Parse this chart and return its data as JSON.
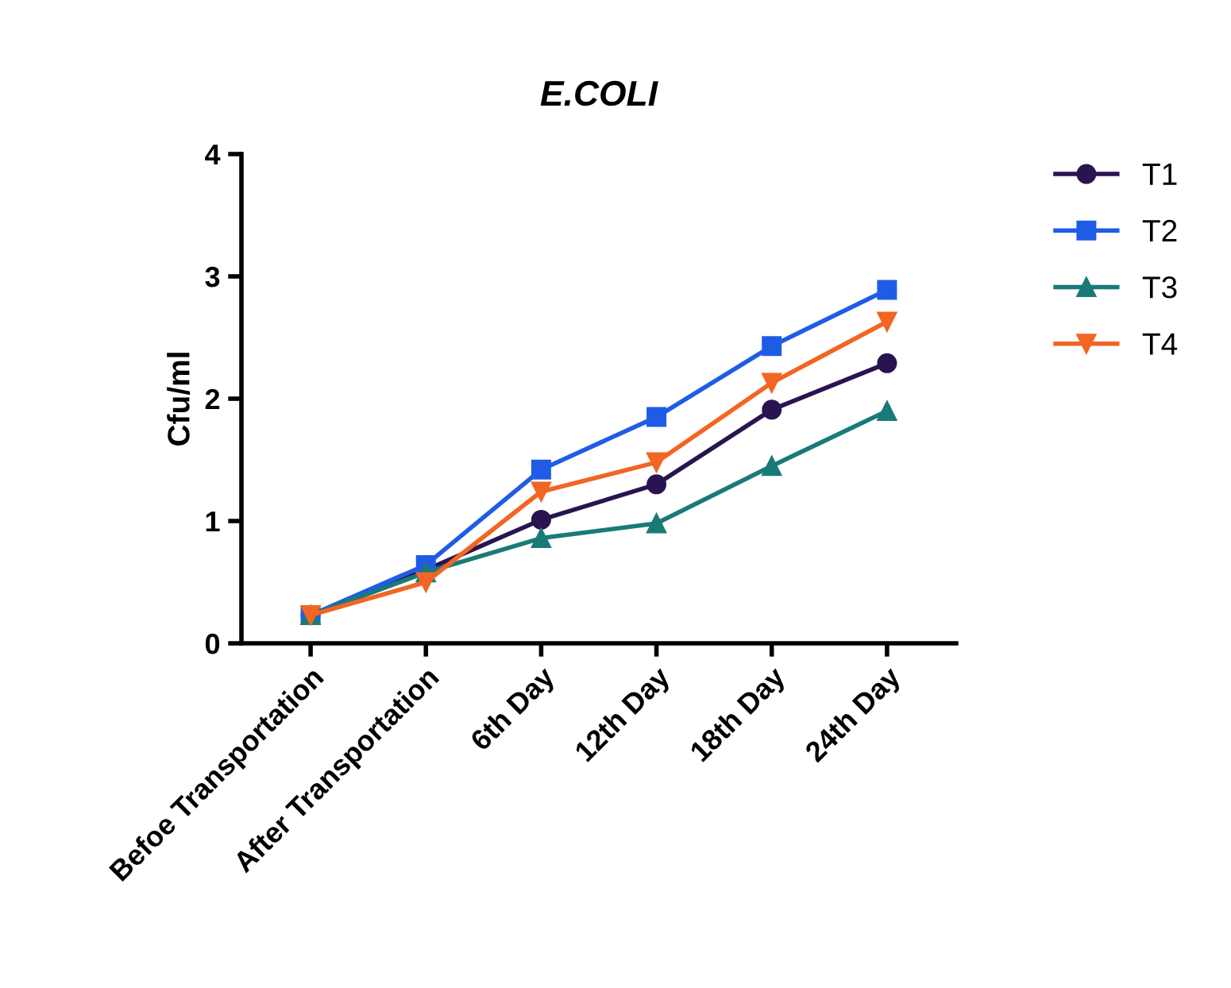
{
  "chart_data": {
    "type": "line",
    "title": "E.COLI",
    "ylabel": "Cfu/ml",
    "categories": [
      "Befoe Transportation",
      "After Transportation",
      "6th Day",
      "12th Day",
      "18th Day",
      "24th Day"
    ],
    "series": [
      {
        "name": "T1",
        "color": "#2a1450",
        "marker": "circle",
        "values": [
          0.23,
          0.6,
          1.01,
          1.3,
          1.91,
          2.29
        ]
      },
      {
        "name": "T2",
        "color": "#1f5ce6",
        "marker": "square",
        "values": [
          0.23,
          0.64,
          1.42,
          1.85,
          2.43,
          2.89
        ]
      },
      {
        "name": "T3",
        "color": "#1a7a78",
        "marker": "triangle",
        "values": [
          0.23,
          0.58,
          0.86,
          0.98,
          1.45,
          1.9
        ]
      },
      {
        "name": "T4",
        "color": "#f26522",
        "marker": "triangle_down",
        "values": [
          0.23,
          0.5,
          1.24,
          1.48,
          2.13,
          2.63
        ]
      }
    ],
    "ylim": [
      0,
      4
    ],
    "yticks": [
      0,
      1,
      2,
      3,
      4
    ],
    "grid": false,
    "legend": "right",
    "line_style": "solid"
  }
}
